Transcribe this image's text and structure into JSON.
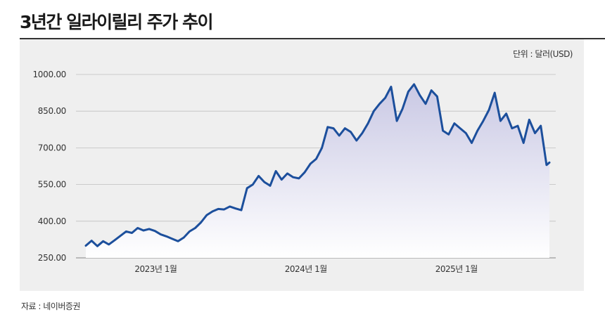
{
  "header": {
    "title": "3년간 일라이릴리 주가 추이"
  },
  "unit_label": "단위 : 달러(USD)",
  "source_label": "자료 : 네이버증권",
  "colors": {
    "line": "#1c4f9c",
    "area_top": "#c9c8e4",
    "area_bottom": "#ffffff",
    "grid": "#bfbfbf",
    "panel": "#efefef"
  },
  "chart_data": {
    "type": "area",
    "title": "3년간 일라이릴리 주가 추이",
    "xlabel": "",
    "ylabel": "",
    "ylim": [
      250,
      1000
    ],
    "xlim": [
      "2022-07-15",
      "2025-09-15"
    ],
    "yticks": [
      "250.00",
      "400.00",
      "550.00",
      "700.00",
      "850.00",
      "1000.00"
    ],
    "xticks": [
      {
        "date": "2023-01-01",
        "label": "2023년 1월"
      },
      {
        "date": "2024-01-01",
        "label": "2024년 1월"
      },
      {
        "date": "2025-01-01",
        "label": "2025년 1월"
      }
    ],
    "grid": true,
    "series": [
      {
        "x": [
          "2022-07-15",
          "2022-07-29",
          "2022-08-12",
          "2022-08-26",
          "2022-09-09",
          "2022-09-23",
          "2022-10-07",
          "2022-10-21",
          "2022-11-04",
          "2022-11-18",
          "2022-12-02",
          "2022-12-16",
          "2022-12-30",
          "2023-01-13",
          "2023-01-27",
          "2023-02-10",
          "2023-02-24",
          "2023-03-10",
          "2023-03-24",
          "2023-04-07",
          "2023-04-21",
          "2023-05-05",
          "2023-05-19",
          "2023-06-02",
          "2023-06-16",
          "2023-06-30",
          "2023-07-14",
          "2023-07-28",
          "2023-08-11",
          "2023-08-25",
          "2023-09-08",
          "2023-09-22",
          "2023-10-06",
          "2023-10-20",
          "2023-11-03",
          "2023-11-17",
          "2023-12-01",
          "2023-12-15",
          "2023-12-29",
          "2024-01-12",
          "2024-01-26",
          "2024-02-09",
          "2024-02-23",
          "2024-03-08",
          "2024-03-22",
          "2024-04-05",
          "2024-04-19",
          "2024-05-03",
          "2024-05-17",
          "2024-05-31",
          "2024-06-14",
          "2024-06-28",
          "2024-07-12",
          "2024-07-26",
          "2024-08-09",
          "2024-08-23",
          "2024-09-06",
          "2024-09-20",
          "2024-10-04",
          "2024-10-18",
          "2024-11-01",
          "2024-11-15",
          "2024-11-29",
          "2024-12-13",
          "2024-12-27",
          "2025-01-10",
          "2025-01-24",
          "2025-02-07",
          "2025-02-21",
          "2025-03-07",
          "2025-03-21",
          "2025-04-04",
          "2025-04-18",
          "2025-05-02",
          "2025-05-16",
          "2025-05-30",
          "2025-06-13",
          "2025-06-27",
          "2025-07-11",
          "2025-07-25",
          "2025-08-08",
          "2025-08-15"
        ],
        "values": [
          300,
          320,
          298,
          318,
          305,
          322,
          340,
          358,
          352,
          372,
          362,
          368,
          360,
          346,
          338,
          328,
          318,
          333,
          358,
          372,
          395,
          425,
          440,
          450,
          448,
          460,
          452,
          445,
          535,
          550,
          585,
          560,
          545,
          605,
          570,
          595,
          580,
          575,
          600,
          635,
          655,
          700,
          785,
          780,
          750,
          780,
          765,
          730,
          760,
          800,
          850,
          880,
          905,
          950,
          810,
          860,
          930,
          960,
          915,
          880,
          935,
          910,
          770,
          755,
          800,
          780,
          760,
          720,
          770,
          810,
          855,
          925,
          810,
          840,
          780,
          790,
          720,
          815,
          760,
          790,
          630,
          640
        ]
      }
    ]
  }
}
